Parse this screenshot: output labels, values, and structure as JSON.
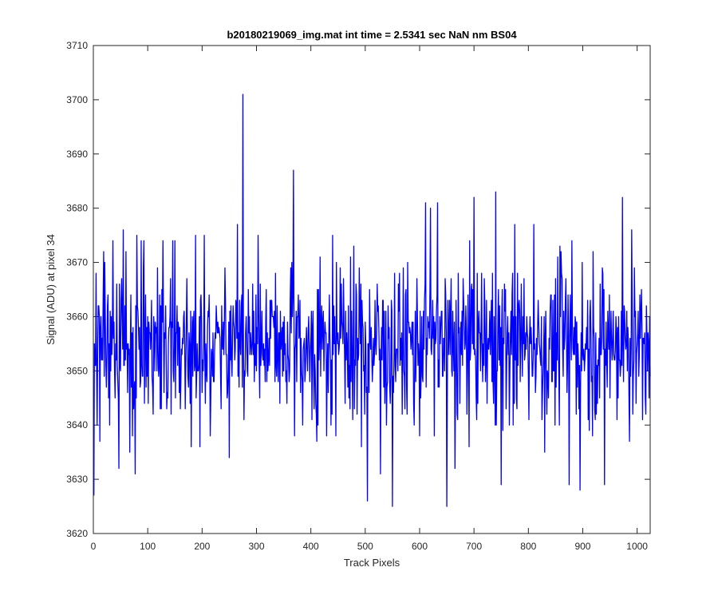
{
  "chart_data": {
    "type": "line",
    "title": "b20180219069_img.mat int time = 2.5341 sec  NaN nm BS04",
    "xlabel": "Track Pixels",
    "ylabel": "Signal (ADU) at pixel 34",
    "xlim": [
      0,
      1024
    ],
    "ylim": [
      3620,
      3710
    ],
    "xticks": [
      0,
      100,
      200,
      300,
      400,
      500,
      600,
      700,
      800,
      900,
      1000
    ],
    "yticks": [
      3620,
      3630,
      3640,
      3650,
      3660,
      3670,
      3680,
      3690,
      3700,
      3710
    ],
    "grid": false,
    "box": true,
    "series": [
      {
        "color": "#0000ff",
        "x_start": 1,
        "x_step": 1,
        "count": 1024,
        "baseline": 3655,
        "noise_sd": 7,
        "points": [
          [
            1,
            3627
          ],
          [
            7,
            3640
          ],
          [
            12,
            3637
          ],
          [
            30,
            3640
          ],
          [
            47,
            3632
          ],
          [
            55,
            3676
          ],
          [
            67,
            3635
          ],
          [
            72,
            3638
          ],
          [
            77,
            3631
          ],
          [
            80,
            3675
          ],
          [
            146,
            3674
          ],
          [
            150,
            3674
          ],
          [
            180,
            3636
          ],
          [
            188,
            3675
          ],
          [
            196,
            3636
          ],
          [
            204,
            3675
          ],
          [
            215,
            3638
          ],
          [
            250,
            3634
          ],
          [
            265,
            3677
          ],
          [
            275,
            3701
          ],
          [
            303,
            3675
          ],
          [
            340,
            3648
          ],
          [
            368,
            3687
          ],
          [
            385,
            3640
          ],
          [
            402,
            3641
          ],
          [
            440,
            3675
          ],
          [
            480,
            3643
          ],
          [
            504,
            3626
          ],
          [
            528,
            3631
          ],
          [
            550,
            3625
          ],
          [
            590,
            3640
          ],
          [
            611,
            3681
          ],
          [
            620,
            3680
          ],
          [
            633,
            3681
          ],
          [
            650,
            3625
          ],
          [
            665,
            3632
          ],
          [
            700,
            3682
          ],
          [
            740,
            3683
          ],
          [
            750,
            3629
          ],
          [
            775,
            3677
          ],
          [
            810,
            3677
          ],
          [
            830,
            3635
          ],
          [
            858,
            3673
          ],
          [
            875,
            3629
          ],
          [
            880,
            3674
          ],
          [
            895,
            3628
          ],
          [
            940,
            3629
          ],
          [
            973,
            3682
          ],
          [
            990,
            3676
          ],
          [
            1010,
            3641
          ],
          [
            1016,
            3642
          ],
          [
            1020,
            3657
          ]
        ]
      }
    ]
  }
}
